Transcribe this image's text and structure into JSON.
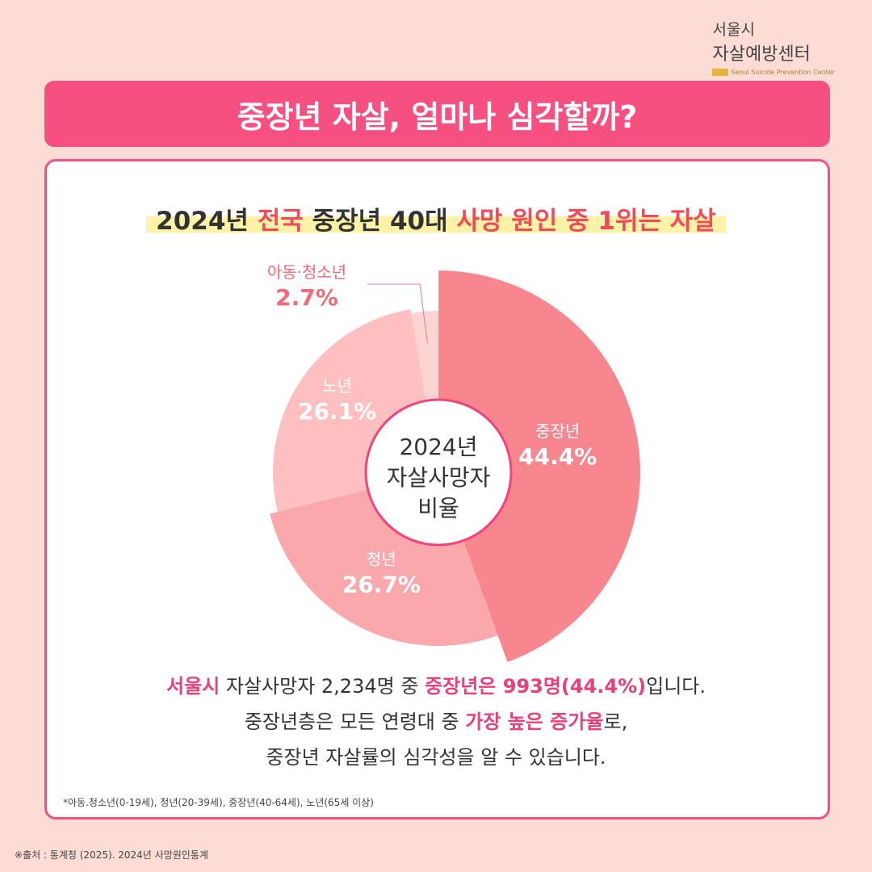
{
  "logo": {
    "line1": "서울시",
    "line2": "자살예방센터",
    "english": "Seoul Suicide Prevention Center"
  },
  "title": "중장년 자살, 얼마나 심각할까?",
  "headline": [
    {
      "text": "2024년 "
    },
    {
      "text": "전국",
      "color": "#ef4b5a"
    },
    {
      "text": " 중장년 40대 "
    },
    {
      "text": "사망 원인 중 1위는 자살",
      "color": "#ef4b5a"
    }
  ],
  "chart_data": {
    "type": "pie",
    "center_label": [
      "2024년",
      "자살사망자",
      "비율"
    ],
    "categories": [
      "중장년",
      "청년",
      "노년",
      "아동·청소년"
    ],
    "values": [
      44.4,
      26.7,
      26.1,
      2.7
    ],
    "value_labels": [
      "44.4%",
      "26.7%",
      "26.1%",
      "2.7%"
    ],
    "colors": [
      "#f8868f",
      "#fba8ac",
      "#fdbfc0",
      "#fdd4d4"
    ]
  },
  "summary": [
    [
      {
        "text": "서울시",
        "color": "#e8417a"
      },
      {
        "text": " 자살사망자 2,234명 중 "
      },
      {
        "text": "중장년은 993명(44.4%)",
        "color": "#e8417a"
      },
      {
        "text": "입니다."
      }
    ],
    [
      {
        "text": "중장년층은 모든 연령대 중 "
      },
      {
        "text": "가장 높은 증가율",
        "color": "#e8417a"
      },
      {
        "text": "로,"
      }
    ],
    [
      {
        "text": "중장년 자살률의 심각성을 알 수 있습니다."
      }
    ]
  ],
  "footnote": "*아동.청소년(0-19세), 청년(20-39세), 중장년(40-64세), 노년(65세 이상)",
  "source": "※출처 : 통계청 (2025). 2024년 사망원인통계"
}
